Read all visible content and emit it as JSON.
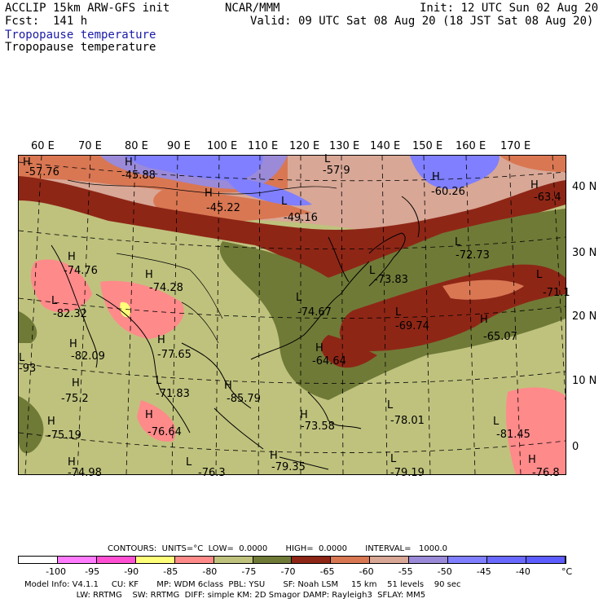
{
  "header": {
    "line1_left": "ACCLIP 15km ARW-GFS init",
    "line1_center": "NCAR/MMM",
    "line1_right": "Init: 12 UTC Sun 02 Aug 20",
    "line2_left": "Fcst:  141 h",
    "line2_right": "Valid: 09 UTC Sat 08 Aug 20 (18 JST Sat 08 Aug 20)",
    "field_title_1": "Tropopause temperature",
    "field_title_2": "Tropopause temperature"
  },
  "map": {
    "lon_labels": [
      "60 E",
      "70 E",
      "80 E",
      "90 E",
      "100 E",
      "110 E",
      "120 E",
      "130 E",
      "140 E",
      "150 E",
      "160 E",
      "170 E"
    ],
    "lat_labels": [
      "40 N",
      "30 N",
      "20 N",
      "10 N",
      "0"
    ],
    "markers": [
      {
        "t": "H",
        "v": "-57.76"
      },
      {
        "t": "H",
        "v": "-45.88"
      },
      {
        "t": "L",
        "v": "-57.9"
      },
      {
        "t": "H",
        "v": "-45.22"
      },
      {
        "t": "L",
        "v": "-49.16"
      },
      {
        "t": "H",
        "v": "-60.26"
      },
      {
        "t": "H",
        "v": "-63.4"
      },
      {
        "t": "H",
        "v": "-74.76"
      },
      {
        "t": "H",
        "v": "-74.28"
      },
      {
        "t": "L",
        "v": "-72.73"
      },
      {
        "t": "L",
        "v": "-73.83"
      },
      {
        "t": "L",
        "v": "-71.1"
      },
      {
        "t": "L",
        "v": "-82.32"
      },
      {
        "t": "L",
        "v": "-74.67"
      },
      {
        "t": "L",
        "v": "-69.74"
      },
      {
        "t": "H",
        "v": "-65.07"
      },
      {
        "t": "H",
        "v": "-82.09"
      },
      {
        "t": "H",
        "v": "-77.65"
      },
      {
        "t": "H",
        "v": "-64.64"
      },
      {
        "t": "L",
        "v": "-93"
      },
      {
        "t": "H",
        "v": "-75.2"
      },
      {
        "t": "L",
        "v": "-71.83"
      },
      {
        "t": "H",
        "v": "-85.79"
      },
      {
        "t": "H",
        "v": "-75.19"
      },
      {
        "t": "H",
        "v": "-76.64"
      },
      {
        "t": "H",
        "v": "-73.58"
      },
      {
        "t": "L",
        "v": "-78.01"
      },
      {
        "t": "L",
        "v": "-81.45"
      },
      {
        "t": "H",
        "v": "-74.98"
      },
      {
        "t": "L",
        "v": "-76.3"
      },
      {
        "t": "H",
        "v": "-79.35"
      },
      {
        "t": "L",
        "v": "-79.19"
      },
      {
        "t": "H",
        "v": "-76.8"
      }
    ]
  },
  "footer": {
    "contours": "CONTOURS:  UNITS=°C  LOW=  0.0000       HIGH=  0.0000       INTERVAL=   1000.0",
    "model1": "Model Info: V4.1.1     CU: KF       MP: WDM 6class  PBL: YSU       SF: Noah LSM     15 km    51 levels    90 sec",
    "model2": "                    LW: RRTMG    SW: RRTMG  DIFF: simple KM: 2D Smagor DAMP: Rayleigh3  SFLAY: MM5"
  },
  "colorbar": {
    "colors": [
      "#ffffff",
      "#ff7bff",
      "#ff4fd2",
      "#ffff7a",
      "#ff8a8a",
      "#bfc27d",
      "#6f7a37",
      "#8e2616",
      "#d97753",
      "#d8a796",
      "#9a8ad8",
      "#7f7fff",
      "#6969ff",
      "#5d5dff"
    ],
    "ticks": [
      "-100",
      "-95",
      "-90",
      "-85",
      "-80",
      "-75",
      "-70",
      "-65",
      "-60",
      "-55",
      "-50",
      "-45",
      "-40"
    ],
    "unit": "°C"
  }
}
